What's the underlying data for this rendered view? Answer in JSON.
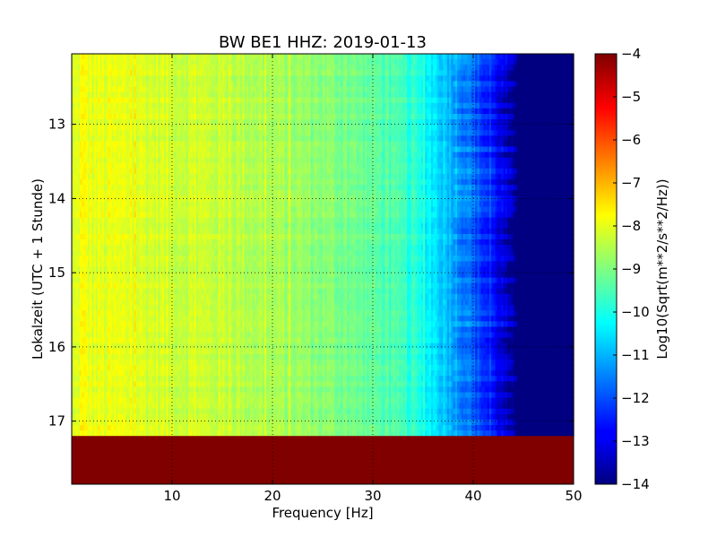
{
  "chart_data": {
    "type": "heatmap",
    "title": "BW BE1 HHZ: 2019-01-13",
    "xlabel": "Frequency [Hz]",
    "ylabel": "Lokalzeit (UTC + 1 Stunde)",
    "xlim": [
      0,
      50
    ],
    "ylim": [
      12.05,
      17.85
    ],
    "x_ticks": [
      "10",
      "20",
      "30",
      "40",
      "50"
    ],
    "y_ticks": [
      "13",
      "14",
      "15",
      "16",
      "17"
    ],
    "grid": true,
    "colorbar": {
      "label": "Log10(Sqrt(m**2/s**2/Hz))",
      "range": [
        -14,
        -4
      ],
      "ticks": [
        "-4",
        "-5",
        "-6",
        "-7",
        "-8",
        "-9",
        "-10",
        "-11",
        "-12",
        "-13",
        "-14"
      ],
      "colormap": "jet"
    },
    "spectrum_profile": {
      "frequency_hz": [
        0,
        1,
        2,
        5,
        10,
        15,
        20,
        25,
        30,
        33,
        36,
        38,
        40,
        42,
        43.5,
        44,
        50
      ],
      "log10_psd": [
        -8.3,
        -7.8,
        -8.0,
        -8.0,
        -8.2,
        -8.3,
        -8.6,
        -8.9,
        -9.3,
        -9.7,
        -10.4,
        -11.0,
        -11.8,
        -12.6,
        -13.3,
        -14,
        -14
      ]
    },
    "data_gap": {
      "start_hour": 17.2,
      "end_hour": 17.85,
      "value": -4
    }
  }
}
